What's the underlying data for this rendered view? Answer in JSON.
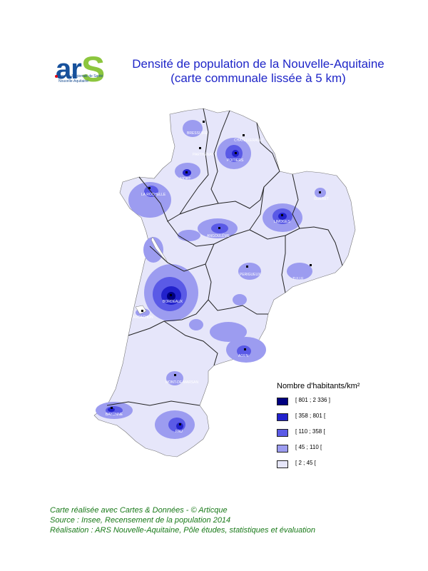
{
  "logo": {
    "word": "ars",
    "subtitle_line1": "Agence Régionale de Santé",
    "subtitle_line2": "Nouvelle-Aquitaine"
  },
  "title": {
    "line1": "Densité de population de la Nouvelle-Aquitaine",
    "line2": "(carte communale lissée à 5 km)"
  },
  "legend": {
    "title": "Nombre d'habitants/km²",
    "classes": [
      {
        "label": "[ 801 ; 2 336 ]",
        "color": "#000080"
      },
      {
        "label": "[ 358 ; 801 [",
        "color": "#2222cc"
      },
      {
        "label": "[ 110 ; 358 [",
        "color": "#5a5ae6"
      },
      {
        "label": "[ 45 ; 110 [",
        "color": "#9c9cf0"
      },
      {
        "label": "[ 2 ; 45 [",
        "color": "#e6e6fa"
      }
    ]
  },
  "cities": [
    {
      "name": "BRESSUIRE"
    },
    {
      "name": "CHATELLERAULT"
    },
    {
      "name": "PARTHENAY"
    },
    {
      "name": "POITIERS"
    },
    {
      "name": "NIORT"
    },
    {
      "name": "LA ROCHELLE"
    },
    {
      "name": "ANGOULÊME"
    },
    {
      "name": "LIMOGES"
    },
    {
      "name": "GUERET"
    },
    {
      "name": "TULLE"
    },
    {
      "name": "PERIGUEUX"
    },
    {
      "name": "BORDEAUX"
    },
    {
      "name": "ARCACHON"
    },
    {
      "name": "AGEN"
    },
    {
      "name": "MONT-DE-MARSAN"
    },
    {
      "name": "BAYONNE"
    },
    {
      "name": "PAU"
    }
  ],
  "credits": {
    "line1": "Carte réalisée avec Cartes & Données - © Articque",
    "line2": "Source : Insee, Recensement de la population 2014",
    "line3": "Réalisation : ARS Nouvelle-Aquitaine, Pôle études, statistiques et évaluation"
  }
}
